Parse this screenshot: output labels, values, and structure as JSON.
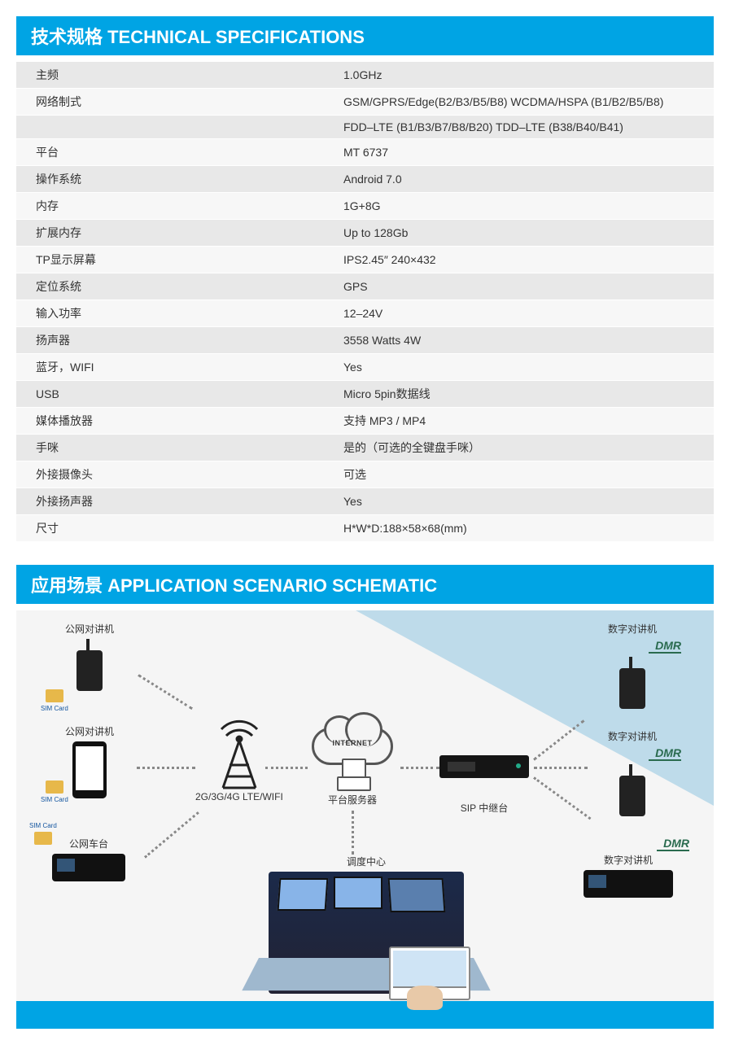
{
  "colors": {
    "primary": "#00a4e4",
    "row_alt": "#e8e8e8",
    "row": "#f7f7f7",
    "text": "#333333",
    "dmr": "#2a6b4f",
    "bg_triangle": "#9ac9e3"
  },
  "header1": "技术规格 TECHNICAL SPECIFICATIONS",
  "specs": {
    "columns": [
      "label",
      "value"
    ],
    "rows": [
      {
        "label": "主频",
        "value": "1.0GHz",
        "alt": true
      },
      {
        "label": "网络制式",
        "value": "GSM/GPRS/Edge(B2/B3/B5/B8)  WCDMA/HSPA (B1/B2/B5/B8)",
        "alt": false
      },
      {
        "label": "",
        "value": "FDD–LTE (B1/B3/B7/B8/B20)  TDD–LTE (B38/B40/B41)",
        "alt": true
      },
      {
        "label": "平台",
        "value": "MT 6737",
        "alt": false
      },
      {
        "label": "操作系统",
        "value": "Android 7.0",
        "alt": true
      },
      {
        "label": "内存",
        "value": "1G+8G",
        "alt": false
      },
      {
        "label": "扩展内存",
        "value": "Up to 128Gb",
        "alt": true
      },
      {
        "label": "TP显示屏幕",
        "value": "IPS2.45″  240×432",
        "alt": false
      },
      {
        "label": "定位系统",
        "value": "GPS",
        "alt": true
      },
      {
        "label": "输入功率",
        "value": "12–24V",
        "alt": false
      },
      {
        "label": "扬声器",
        "value": "3558 Watts 4W",
        "alt": true
      },
      {
        "label": "蓝牙，WIFI",
        "value": "Yes",
        "alt": false
      },
      {
        "label": "USB",
        "value": "Micro 5pin数据线",
        "alt": true
      },
      {
        "label": "媒体播放器",
        "value": "支持 MP3 / MP4",
        "alt": false
      },
      {
        "label": "手咪",
        "value": "是的（可选的全键盘手咪）",
        "alt": true
      },
      {
        "label": "外接摄像头",
        "value": "可选",
        "alt": false
      },
      {
        "label": "外接扬声器",
        "value": "Yes",
        "alt": true
      },
      {
        "label": "尺寸",
        "value": "H*W*D:188×58×68(mm)",
        "alt": false
      }
    ]
  },
  "header2": "应用场景  APPLICATION SCENARIO SCHEMATIC",
  "scenario": {
    "background_color": "#f5f5f5",
    "triangle_overlay_color": "#9ac9e3",
    "nodes": {
      "poc_radio1": {
        "label": "公网对讲机",
        "type": "handheld-radio",
        "sim_label": "SIM Card"
      },
      "poc_radio2": {
        "label": "公网对讲机",
        "type": "handheld-phone",
        "sim_label": "SIM Card"
      },
      "poc_base": {
        "label": "公网车台",
        "type": "mobile-base",
        "sim_label": "SIM Card"
      },
      "tower": {
        "label": "2G/3G/4G LTE/WIFI",
        "type": "antenna-tower"
      },
      "cloud": {
        "label": "平台服务器",
        "type": "cloud-server",
        "cloud_text": "INTERNET"
      },
      "sip": {
        "label": "SIP 中继台",
        "type": "rack-server"
      },
      "dispatch": {
        "label": "调度中心",
        "type": "dispatch-center"
      },
      "dmr_radio1": {
        "label": "数字对讲机",
        "type": "handheld-radio",
        "badge": "DMR"
      },
      "dmr_radio2": {
        "label": "数字对讲机",
        "type": "handheld-radio",
        "badge": "DMR"
      },
      "dmr_base": {
        "label": "数字对讲机",
        "type": "mobile-base",
        "badge": "DMR"
      }
    },
    "edges": [
      {
        "from": "poc_radio1",
        "to": "tower",
        "style": "dotted"
      },
      {
        "from": "poc_radio2",
        "to": "tower",
        "style": "dotted"
      },
      {
        "from": "poc_base",
        "to": "tower",
        "style": "dotted"
      },
      {
        "from": "tower",
        "to": "cloud",
        "style": "dotted"
      },
      {
        "from": "cloud",
        "to": "sip",
        "style": "dotted"
      },
      {
        "from": "cloud",
        "to": "dispatch",
        "style": "dotted"
      },
      {
        "from": "sip",
        "to": "dmr_radio1",
        "style": "dotted"
      },
      {
        "from": "sip",
        "to": "dmr_radio2",
        "style": "dotted"
      },
      {
        "from": "sip",
        "to": "dmr_base",
        "style": "dotted"
      }
    ]
  }
}
